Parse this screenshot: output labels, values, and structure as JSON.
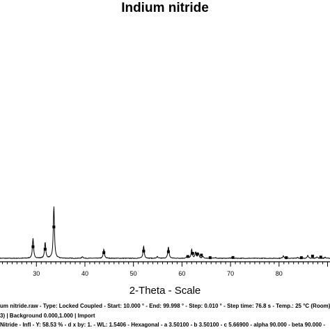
{
  "chart_data": {
    "type": "line",
    "title": "Indium nitride",
    "xlabel": "2-Theta - Scale",
    "ylabel": "",
    "xlim": [
      22.5,
      90.5
    ],
    "x_ticks": [
      30,
      40,
      50,
      60,
      70,
      80
    ],
    "grid": false,
    "series": [
      {
        "type": "line",
        "peaks": [
          {
            "x": 29.3,
            "y": 100
          },
          {
            "x": 31.8,
            "y": 82
          },
          {
            "x": 33.6,
            "y": 265
          },
          {
            "x": 39.5,
            "y": 9
          },
          {
            "x": 43.9,
            "y": 45
          },
          {
            "x": 52.1,
            "y": 62
          },
          {
            "x": 54.9,
            "y": 8
          },
          {
            "x": 57.2,
            "y": 58
          },
          {
            "x": 61.0,
            "y": 8
          },
          {
            "x": 62.0,
            "y": 44
          },
          {
            "x": 62.8,
            "y": 30
          },
          {
            "x": 63.4,
            "y": 24
          },
          {
            "x": 64.3,
            "y": 9
          },
          {
            "x": 66.9,
            "y": 4
          },
          {
            "x": 70.4,
            "y": 8
          },
          {
            "x": 80.9,
            "y": 13
          },
          {
            "x": 83.8,
            "y": 5
          },
          {
            "x": 85.9,
            "y": 14
          },
          {
            "x": 87.8,
            "y": 8
          },
          {
            "x": 89.5,
            "y": 5
          }
        ]
      },
      {
        "type": "scatter",
        "points": [
          {
            "x": 29.3,
            "y": 58
          },
          {
            "x": 31.8,
            "y": 46
          },
          {
            "x": 33.6,
            "y": 158
          },
          {
            "x": 43.9,
            "y": 28
          },
          {
            "x": 52.1,
            "y": 36
          },
          {
            "x": 57.2,
            "y": 33
          },
          {
            "x": 61.2,
            "y": 9
          },
          {
            "x": 62.2,
            "y": 25
          },
          {
            "x": 63.1,
            "y": 22
          },
          {
            "x": 64.0,
            "y": 16
          },
          {
            "x": 65.8,
            "y": 3
          },
          {
            "x": 70.5,
            "y": 4
          },
          {
            "x": 81.5,
            "y": 3
          },
          {
            "x": 84.6,
            "y": 3
          },
          {
            "x": 86.9,
            "y": 11
          },
          {
            "x": 88.6,
            "y": 6
          }
        ]
      }
    ]
  },
  "info_lines": [
    "um nitride.raw - Type: Locked Coupled - Start: 10.000 ° - End: 99.998 ° - Step: 0.010 ° - Step time: 76.8 s - Temp.: 25 °C (Room)",
    "3) | Background 0.000,1.000 | Import",
    "Nitride - Infl - Y: 58.53 % - d x by: 1. - WL: 1.5406 - Hexagonal - a 3.50100 - b 3.50100 - c 5.66900 - alpha 90.000 - beta 90.000 -"
  ]
}
